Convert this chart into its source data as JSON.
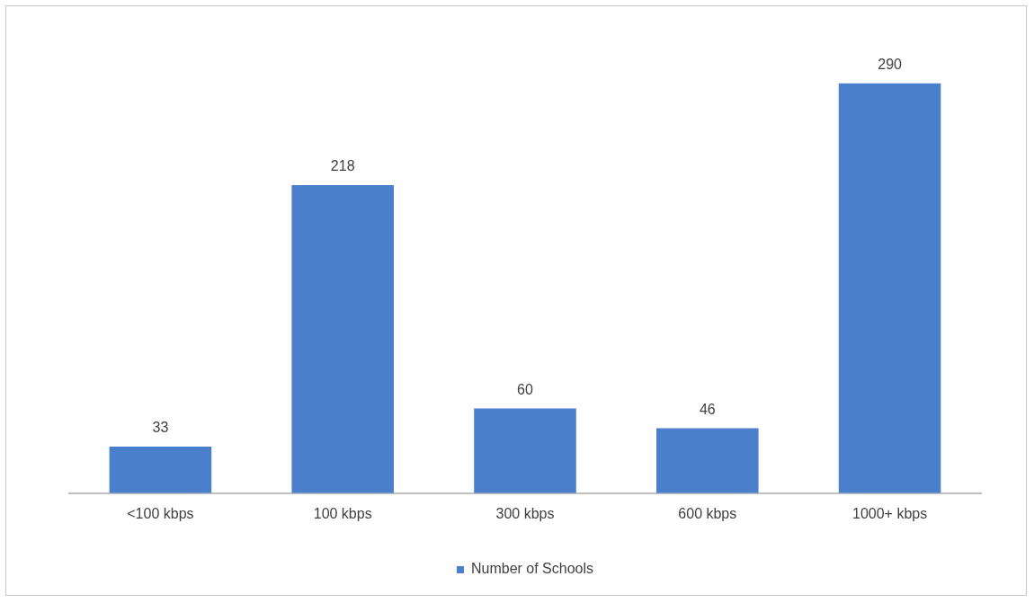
{
  "chart_data": {
    "type": "bar",
    "categories": [
      "<100 kbps",
      "100 kbps",
      "300 kbps",
      "600 kbps",
      "1000+ kbps"
    ],
    "series": [
      {
        "name": "Number of Schools",
        "color": "#4a7fcb",
        "values": [
          33,
          218,
          60,
          46,
          290
        ]
      }
    ],
    "data_labels": true,
    "grid": false,
    "legend": "bottom",
    "tick_labels": "x"
  }
}
